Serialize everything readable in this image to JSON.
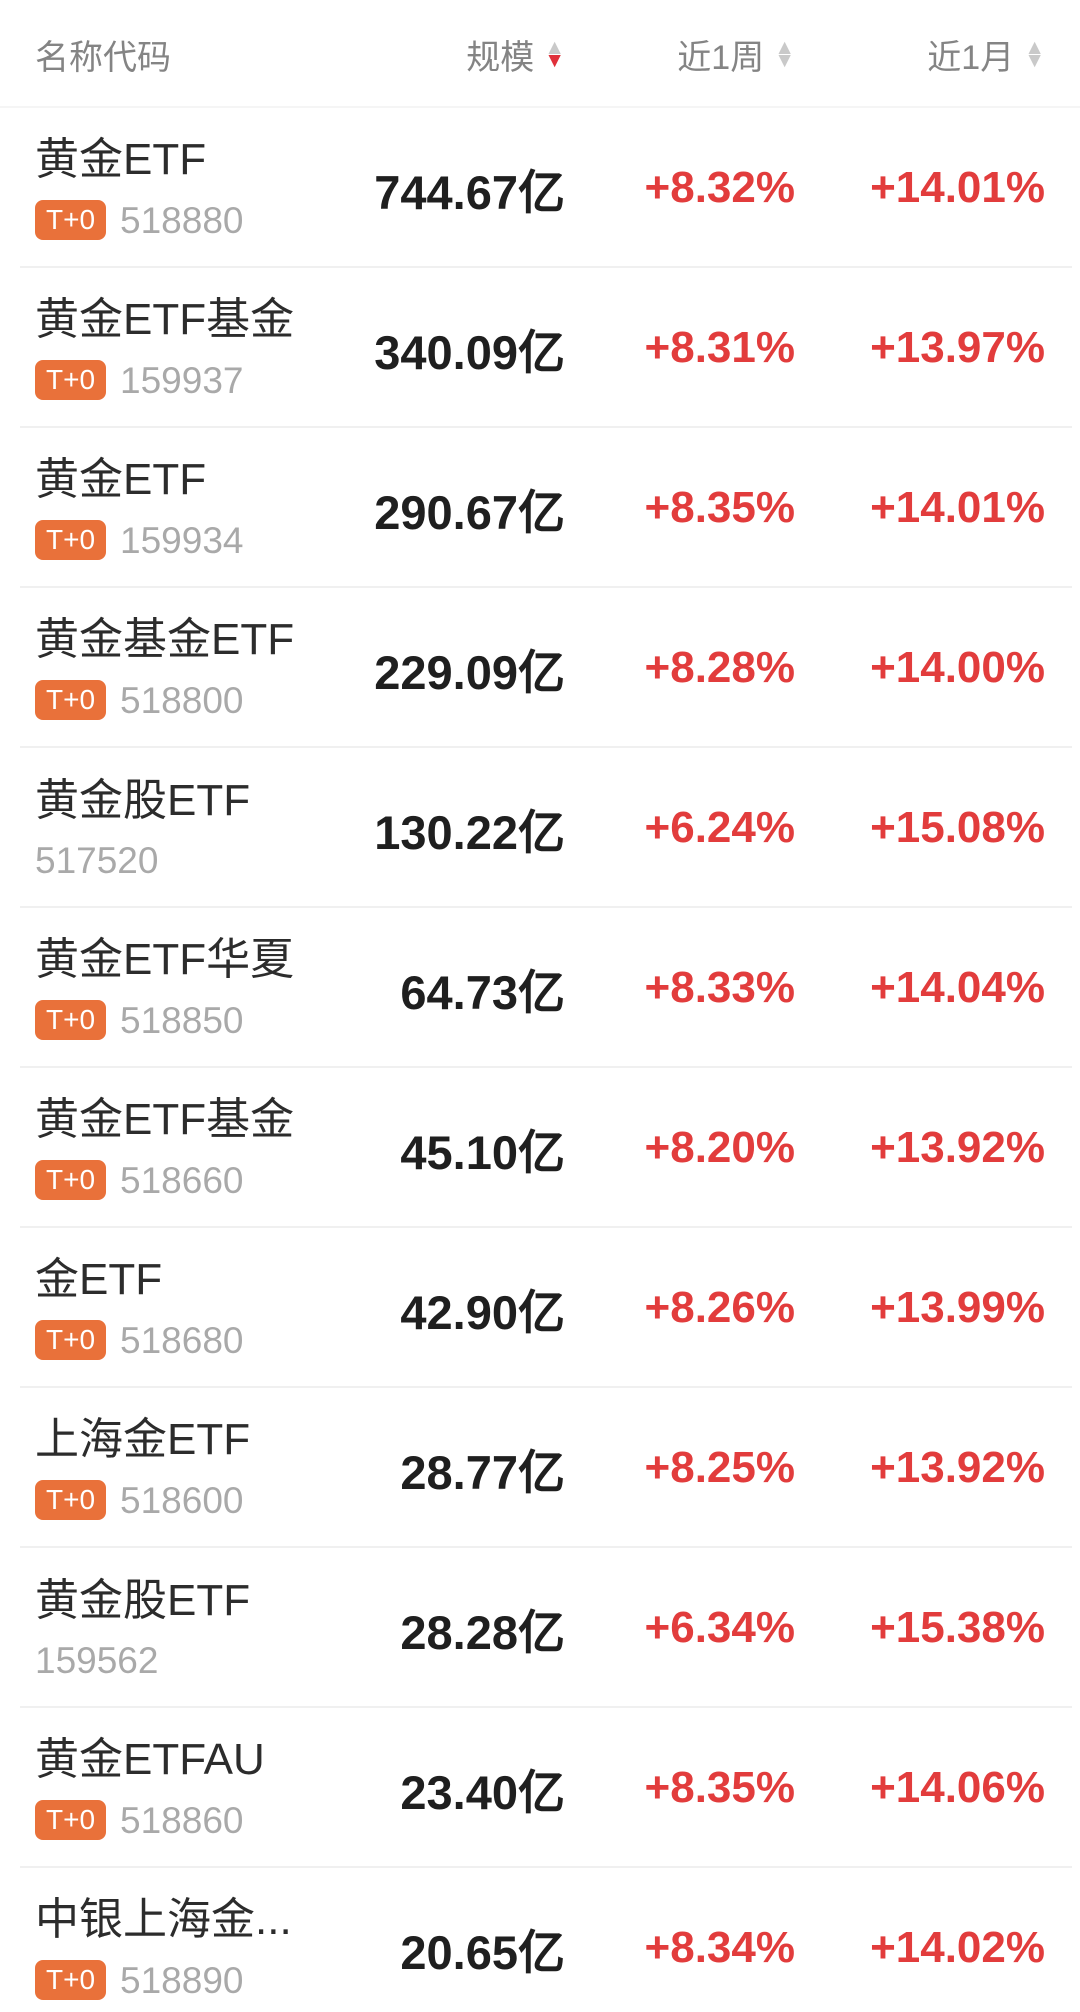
{
  "colors": {
    "positive_red": "#e23c3c",
    "badge_orange": "#e9713a",
    "code_gray": "#a9a9a9",
    "header_gray": "#848484",
    "name_black": "#2c2c2c",
    "value_black": "#1f1f1f",
    "sort_active": "#e0303a",
    "sort_inactive": "#c9c9c9"
  },
  "table": {
    "badge_label": "T+0",
    "columns": [
      {
        "id": "name_code",
        "label": "名称代码",
        "sortable": false,
        "sort": null
      },
      {
        "id": "scale",
        "label": "规模",
        "sortable": true,
        "sort": "desc"
      },
      {
        "id": "week_1",
        "label": "近1周",
        "sortable": true,
        "sort": "none"
      },
      {
        "id": "month_1",
        "label": "近1月",
        "sortable": true,
        "sort": "none"
      }
    ],
    "rows": [
      {
        "name": "黄金ETF",
        "t0": true,
        "code": "518880",
        "scale": "744.67亿",
        "week": "+8.32%",
        "month": "+14.01%"
      },
      {
        "name": "黄金ETF基金",
        "t0": true,
        "code": "159937",
        "scale": "340.09亿",
        "week": "+8.31%",
        "month": "+13.97%"
      },
      {
        "name": "黄金ETF",
        "t0": true,
        "code": "159934",
        "scale": "290.67亿",
        "week": "+8.35%",
        "month": "+14.01%"
      },
      {
        "name": "黄金基金ETF",
        "t0": true,
        "code": "518800",
        "scale": "229.09亿",
        "week": "+8.28%",
        "month": "+14.00%"
      },
      {
        "name": "黄金股ETF",
        "t0": false,
        "code": "517520",
        "scale": "130.22亿",
        "week": "+6.24%",
        "month": "+15.08%"
      },
      {
        "name": "黄金ETF华夏",
        "t0": true,
        "code": "518850",
        "scale": "64.73亿",
        "week": "+8.33%",
        "month": "+14.04%"
      },
      {
        "name": "黄金ETF基金",
        "t0": true,
        "code": "518660",
        "scale": "45.10亿",
        "week": "+8.20%",
        "month": "+13.92%"
      },
      {
        "name": "金ETF",
        "t0": true,
        "code": "518680",
        "scale": "42.90亿",
        "week": "+8.26%",
        "month": "+13.99%"
      },
      {
        "name": "上海金ETF",
        "t0": true,
        "code": "518600",
        "scale": "28.77亿",
        "week": "+8.25%",
        "month": "+13.92%"
      },
      {
        "name": "黄金股ETF",
        "t0": false,
        "code": "159562",
        "scale": "28.28亿",
        "week": "+6.34%",
        "month": "+15.38%"
      },
      {
        "name": "黄金ETFAU",
        "t0": true,
        "code": "518860",
        "scale": "23.40亿",
        "week": "+8.35%",
        "month": "+14.06%"
      },
      {
        "name": "中银上海金...",
        "t0": true,
        "code": "518890",
        "scale": "20.65亿",
        "week": "+8.34%",
        "month": "+14.02%"
      }
    ]
  }
}
